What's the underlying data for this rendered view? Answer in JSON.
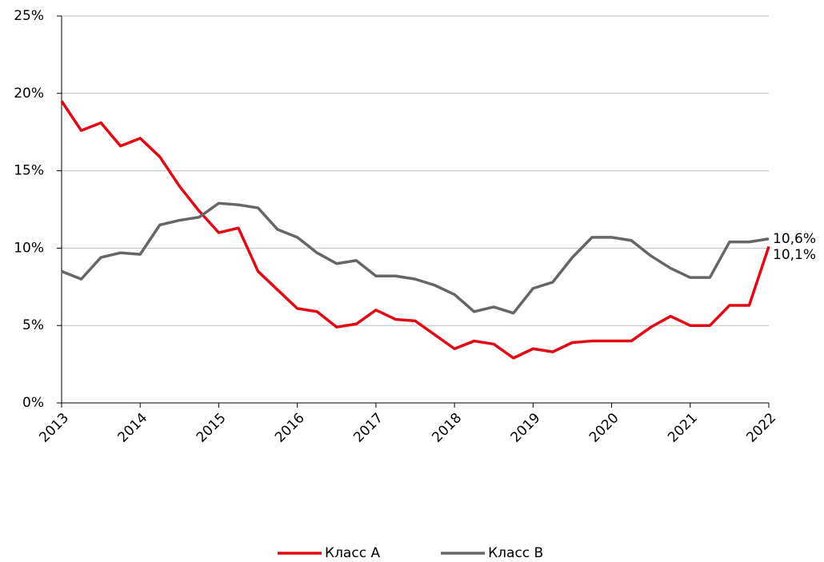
{
  "chart_data": {
    "type": "line",
    "x": [
      2013,
      2013.25,
      2013.5,
      2013.75,
      2014,
      2014.25,
      2014.5,
      2014.75,
      2015,
      2015.25,
      2015.5,
      2015.75,
      2016,
      2016.25,
      2016.5,
      2016.75,
      2017,
      2017.25,
      2017.5,
      2017.75,
      2018,
      2018.25,
      2018.5,
      2018.75,
      2019,
      2019.25,
      2019.5,
      2019.75,
      2020,
      2020.25,
      2020.5,
      2020.75,
      2021,
      2021.25,
      2021.5,
      2021.75,
      2022
    ],
    "series": [
      {
        "name": "Класс А",
        "color": "#e30613",
        "values": [
          19.5,
          17.6,
          18.1,
          16.6,
          17.1,
          15.9,
          14.0,
          12.4,
          11.0,
          11.3,
          8.5,
          7.3,
          6.1,
          5.9,
          4.9,
          5.1,
          6.0,
          5.4,
          5.3,
          4.4,
          3.5,
          4.0,
          3.8,
          2.9,
          3.5,
          3.3,
          3.9,
          4.0,
          4.0,
          4.0,
          4.9,
          5.6,
          5.0,
          5.0,
          6.3,
          6.3,
          10.1
        ],
        "value_labels": [
          null,
          null,
          null,
          null,
          null,
          null,
          null,
          null,
          null,
          null,
          null,
          null,
          null,
          null,
          null,
          null,
          null,
          null,
          null,
          null,
          null,
          null,
          null,
          null,
          null,
          null,
          null,
          null,
          null,
          null,
          null,
          null,
          null,
          null,
          null,
          null,
          "10,1%"
        ]
      },
      {
        "name": "Класс В",
        "color": "#666666",
        "values": [
          8.5,
          8.0,
          9.4,
          9.7,
          9.6,
          11.5,
          11.8,
          12.0,
          12.9,
          12.8,
          12.6,
          11.2,
          10.7,
          9.7,
          9.0,
          9.2,
          8.2,
          8.2,
          8.0,
          7.6,
          7.0,
          5.9,
          6.2,
          5.8,
          7.4,
          7.8,
          9.4,
          10.7,
          10.7,
          10.5,
          9.5,
          8.7,
          8.1,
          8.1,
          10.4,
          10.4,
          10.6
        ],
        "value_labels": [
          null,
          null,
          null,
          null,
          null,
          null,
          null,
          null,
          null,
          null,
          null,
          null,
          null,
          null,
          null,
          null,
          null,
          null,
          null,
          null,
          null,
          null,
          null,
          null,
          null,
          null,
          null,
          null,
          null,
          null,
          null,
          null,
          null,
          null,
          null,
          null,
          "10,6%"
        ]
      }
    ],
    "xlim": [
      2013,
      2022
    ],
    "xticks": [
      2013,
      2014,
      2015,
      2016,
      2017,
      2018,
      2019,
      2020,
      2021,
      2022
    ],
    "ylim": [
      0,
      25
    ],
    "yticks": [
      {
        "value": 0,
        "label": "0%"
      },
      {
        "value": 5,
        "label": "5%"
      },
      {
        "value": 10,
        "label": "10%"
      },
      {
        "value": 15,
        "label": "15%"
      },
      {
        "value": 20,
        "label": "20%"
      },
      {
        "value": 25,
        "label": "25%"
      }
    ],
    "grid": true,
    "legend": "bottom"
  }
}
